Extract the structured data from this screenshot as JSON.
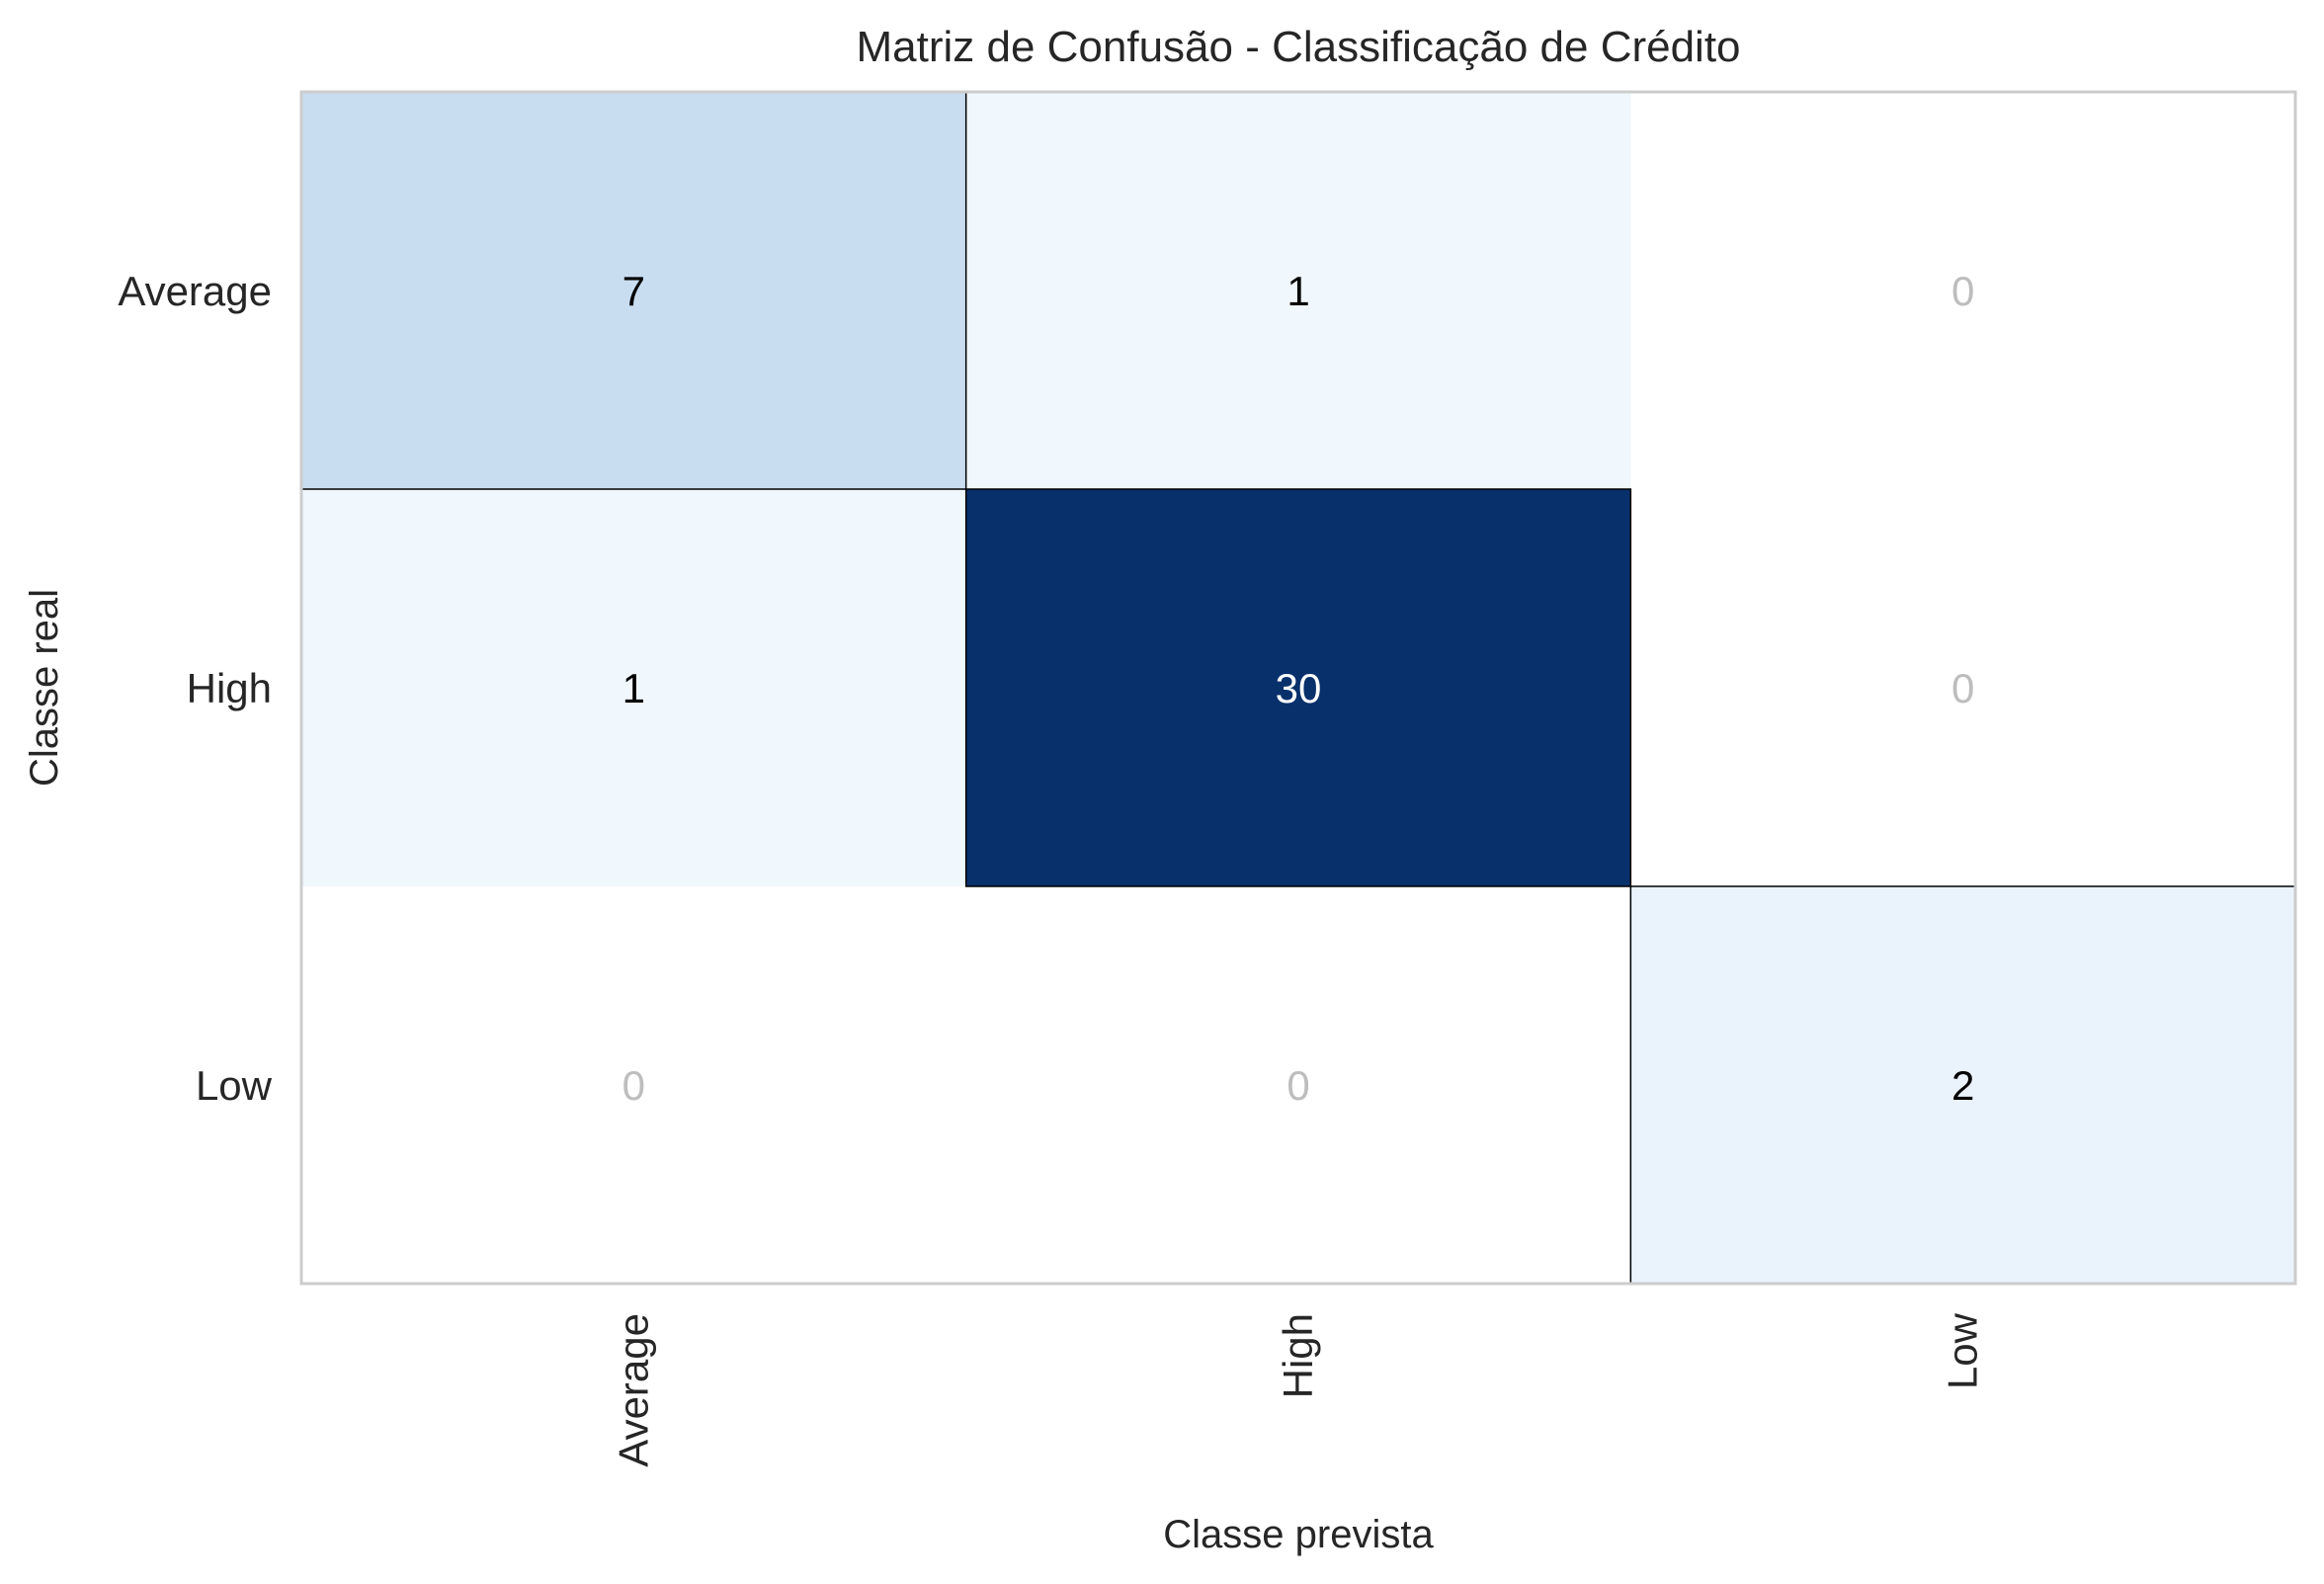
{
  "chart_data": {
    "type": "heatmap",
    "title": "Matriz de Confusão - Classificação de Crédito",
    "xlabel": "Classe prevista",
    "ylabel": "Classe real",
    "x_categories": [
      "Average",
      "High",
      "Low"
    ],
    "y_categories": [
      "Average",
      "High",
      "Low"
    ],
    "values": [
      [
        7,
        1,
        0
      ],
      [
        1,
        30,
        0
      ],
      [
        0,
        0,
        2
      ]
    ],
    "colormap": "Blues",
    "zero_color": "#ffffff",
    "zero_text_color": "#bdbdbd",
    "dark_text_color": "#000000",
    "light_text_color": "#ffffff",
    "grid": false,
    "colorbar": false
  }
}
